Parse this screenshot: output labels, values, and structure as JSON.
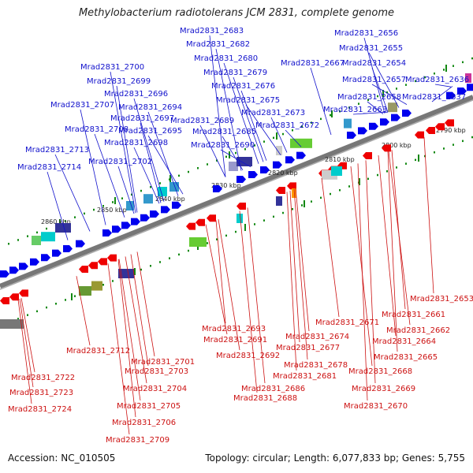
{
  "title": "Methylobacterium radiotolerans JCM 2831, complete genome",
  "footer": {
    "accession": "Accession: NC_010505",
    "topology": "Topology: circular; Length: 6,077,833 bp; Genes: 5,755"
  },
  "colors": {
    "forward_strand": "#0000ee",
    "reverse_strand": "#ee0000",
    "backbone": "#777777",
    "tick": "#118811",
    "label_top": "#1111cc",
    "label_bottom": "#cc1111"
  },
  "scale_labels": [
    "2790 kbp",
    "2800 kbp",
    "2810 kbp",
    "2820 kbp",
    "2830 kbp",
    "2840 kbp",
    "2850 kbp",
    "2860 kbp"
  ],
  "top_labels": [
    "Mrad2831_2683",
    "Mrad2831_2656",
    "Mrad2831_2682",
    "Mrad2831_2655",
    "Mrad2831_2680",
    "Mrad2831_2654",
    "Mrad2831_2667",
    "Mrad2831_2700",
    "Mrad2831_2679",
    "Mrad2831_2657",
    "Mrad2831_2636",
    "Mrad2831_2699",
    "Mrad2831_2676",
    "Mrad2831_2696",
    "Mrad2831_2675",
    "Mrad2831_2658",
    "Mrad2831_2637",
    "Mrad2831_2707",
    "Mrad2831_2694",
    "Mrad2831_2663",
    "Mrad2831_2673",
    "Mrad2831_2697",
    "Mrad2831_2689",
    "Mrad2831_2708",
    "Mrad2831_2695",
    "Mrad2831_2672",
    "Mrad2831_2685",
    "Mrad2831_2698",
    "Mrad2831_2690",
    "Mrad2831_2713",
    "Mrad2831_2702",
    "Mrad2831_2714"
  ],
  "bottom_labels": [
    "Mrad2831_2653",
    "Mrad2831_2661",
    "Mrad2831_2671",
    "Mrad2831_2662",
    "Mrad2831_2693",
    "Mrad2831_2674",
    "Mrad2831_2664",
    "Mrad2831_2691",
    "Mrad2831_2677",
    "Mrad2831_2712",
    "Mrad2831_2701",
    "Mrad2831_2692",
    "Mrad2831_2665",
    "Mrad2831_2678",
    "Mrad2831_2703",
    "Mrad2831_2668",
    "Mrad2831_2681",
    "Mrad2831_2722",
    "Mrad2831_2686",
    "Mrad2831_2704",
    "Mrad2831_2669",
    "Mrad2831_2723",
    "Mrad2831_2688",
    "Mrad2831_2705",
    "Mrad2831_2670",
    "Mrad2831_2724",
    "Mrad2831_2706",
    "Mrad2831_2709"
  ]
}
